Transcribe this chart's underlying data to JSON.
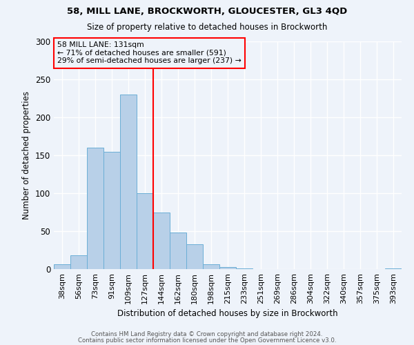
{
  "title_line1": "58, MILL LANE, BROCKWORTH, GLOUCESTER, GL3 4QD",
  "title_line2": "Size of property relative to detached houses in Brockworth",
  "xlabel": "Distribution of detached houses by size in Brockworth",
  "ylabel": "Number of detached properties",
  "bar_labels": [
    "38sqm",
    "56sqm",
    "73sqm",
    "91sqm",
    "109sqm",
    "127sqm",
    "144sqm",
    "162sqm",
    "180sqm",
    "198sqm",
    "215sqm",
    "233sqm",
    "251sqm",
    "269sqm",
    "286sqm",
    "304sqm",
    "322sqm",
    "340sqm",
    "357sqm",
    "375sqm",
    "393sqm"
  ],
  "bar_values": [
    6,
    18,
    160,
    155,
    230,
    100,
    75,
    48,
    33,
    6,
    3,
    1,
    0,
    0,
    0,
    0,
    0,
    0,
    0,
    0,
    1
  ],
  "bar_color": "#b8d0e8",
  "bar_edgecolor": "#6aaed6",
  "reference_line_color": "red",
  "reference_line_idx": 5,
  "annotation_title": "58 MILL LANE: 131sqm",
  "annotation_line1": "← 71% of detached houses are smaller (591)",
  "annotation_line2": "29% of semi-detached houses are larger (237) →",
  "annotation_box_edgecolor": "red",
  "ylim": [
    0,
    300
  ],
  "yticks": [
    0,
    50,
    100,
    150,
    200,
    250,
    300
  ],
  "footer_line1": "Contains HM Land Registry data © Crown copyright and database right 2024.",
  "footer_line2": "Contains public sector information licensed under the Open Government Licence v3.0.",
  "bg_color": "#eef3fa",
  "grid_color": "#ffffff"
}
